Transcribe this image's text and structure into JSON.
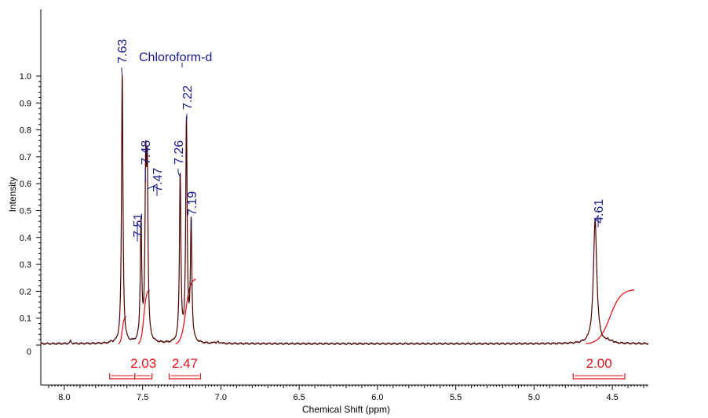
{
  "chart_data": {
    "type": "line",
    "title": "",
    "xlabel": "Chemical Shift (ppm)",
    "ylabel": "Intensity",
    "xlim": [
      8.15,
      4.27
    ],
    "ylim": [
      -0.04,
      1.15
    ],
    "x_ticks": [
      "8.0",
      "7.5",
      "7.0",
      "6.5",
      "6.0",
      "5.5",
      "5.0",
      "4.5"
    ],
    "y_ticks": [
      "0",
      "0.1",
      "0.2",
      "0.3",
      "0.4",
      "0.5",
      "0.6",
      "0.7",
      "0.8",
      "0.9",
      "1.0"
    ],
    "colors": {
      "spectrum": "#4a0000",
      "integral": "#e8161b",
      "label": "#1a1a8c"
    },
    "solvent_label": "Chloroform-d",
    "peaks": [
      {
        "ppm": 7.63,
        "height": 1.0,
        "width": 0.0055,
        "label": "7.63"
      },
      {
        "ppm": 7.51,
        "height": 0.44,
        "width": 0.0055,
        "label": "7.51"
      },
      {
        "ppm": 7.48,
        "height": 0.6,
        "width": 0.0055,
        "label": "7.48"
      },
      {
        "ppm": 7.47,
        "height": 0.58,
        "width": 0.0055,
        "label": "7.47"
      },
      {
        "ppm": 7.26,
        "height": 0.62,
        "width": 0.0055,
        "label": "7.26"
      },
      {
        "ppm": 7.22,
        "height": 0.82,
        "width": 0.0055,
        "label": "7.22"
      },
      {
        "ppm": 7.19,
        "height": 0.44,
        "width": 0.0055,
        "label": "7.19"
      },
      {
        "ppm": 4.61,
        "height": 0.46,
        "width": 0.013,
        "label": "4.61"
      }
    ],
    "integrals": [
      {
        "from": 7.71,
        "to": 7.55,
        "value": ""
      },
      {
        "from": 7.55,
        "to": 7.44,
        "value": "2.03"
      },
      {
        "from": 7.33,
        "to": 7.13,
        "value": "2.47"
      },
      {
        "from": 4.75,
        "to": 4.42,
        "value": "2.00"
      }
    ],
    "integral_curves": [
      {
        "from": 7.655,
        "to": 7.605,
        "rise": 0.1
      },
      {
        "from": 7.53,
        "to": 7.455,
        "rise": 0.2
      },
      {
        "from": 7.29,
        "to": 7.16,
        "rise": 0.24
      },
      {
        "from": 4.67,
        "to": 4.36,
        "rise": 0.2
      }
    ]
  }
}
